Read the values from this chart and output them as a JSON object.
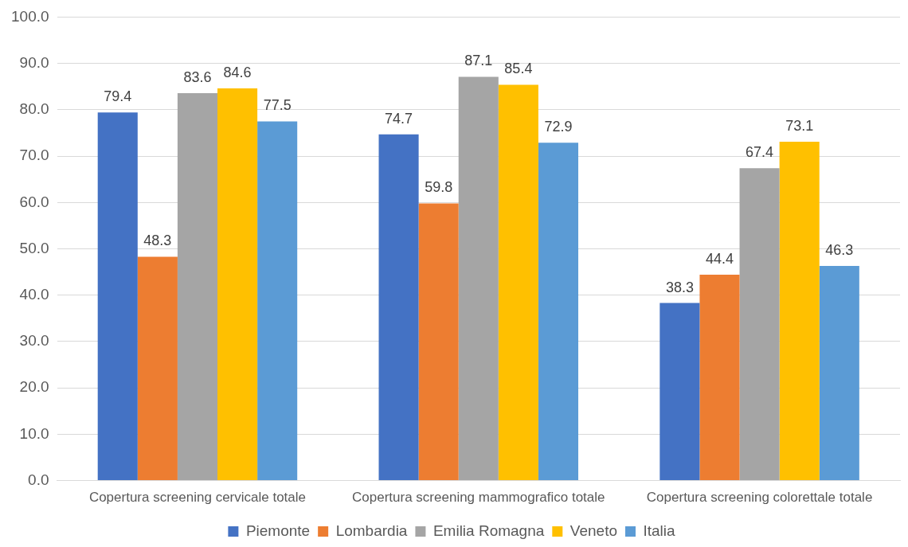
{
  "chart_data": {
    "type": "bar",
    "categories": [
      "Copertura screening cervicale totale",
      "Copertura screening mammografico totale",
      "Copertura screening colorettale totale"
    ],
    "series": [
      {
        "name": "Piemonte",
        "color": "#4472c4",
        "values": [
          79.4,
          74.7,
          38.3
        ]
      },
      {
        "name": "Lombardia",
        "color": "#ed7d31",
        "values": [
          48.3,
          59.8,
          44.4
        ]
      },
      {
        "name": "Emilia Romagna",
        "color": "#a5a5a5",
        "values": [
          83.6,
          87.1,
          67.4
        ]
      },
      {
        "name": "Veneto",
        "color": "#ffc000",
        "values": [
          84.6,
          85.4,
          73.1
        ]
      },
      {
        "name": "Italia",
        "color": "#5b9bd5",
        "values": [
          77.5,
          72.9,
          46.3
        ]
      }
    ],
    "ylim": [
      0,
      100
    ],
    "yticks": [
      {
        "value": 0,
        "label": "0.0"
      },
      {
        "value": 10,
        "label": "10.0"
      },
      {
        "value": 20,
        "label": "20.0"
      },
      {
        "value": 30,
        "label": "30.0"
      },
      {
        "value": 40,
        "label": "40.0"
      },
      {
        "value": 50,
        "label": "50.0"
      },
      {
        "value": 60,
        "label": "60.0"
      },
      {
        "value": 70,
        "label": "70.0"
      },
      {
        "value": 80,
        "label": "80.0"
      },
      {
        "value": 90,
        "label": "90.0"
      },
      {
        "value": 100,
        "label": "100.0"
      }
    ],
    "grid": "y",
    "legend": "bottom",
    "data_labels": true
  }
}
